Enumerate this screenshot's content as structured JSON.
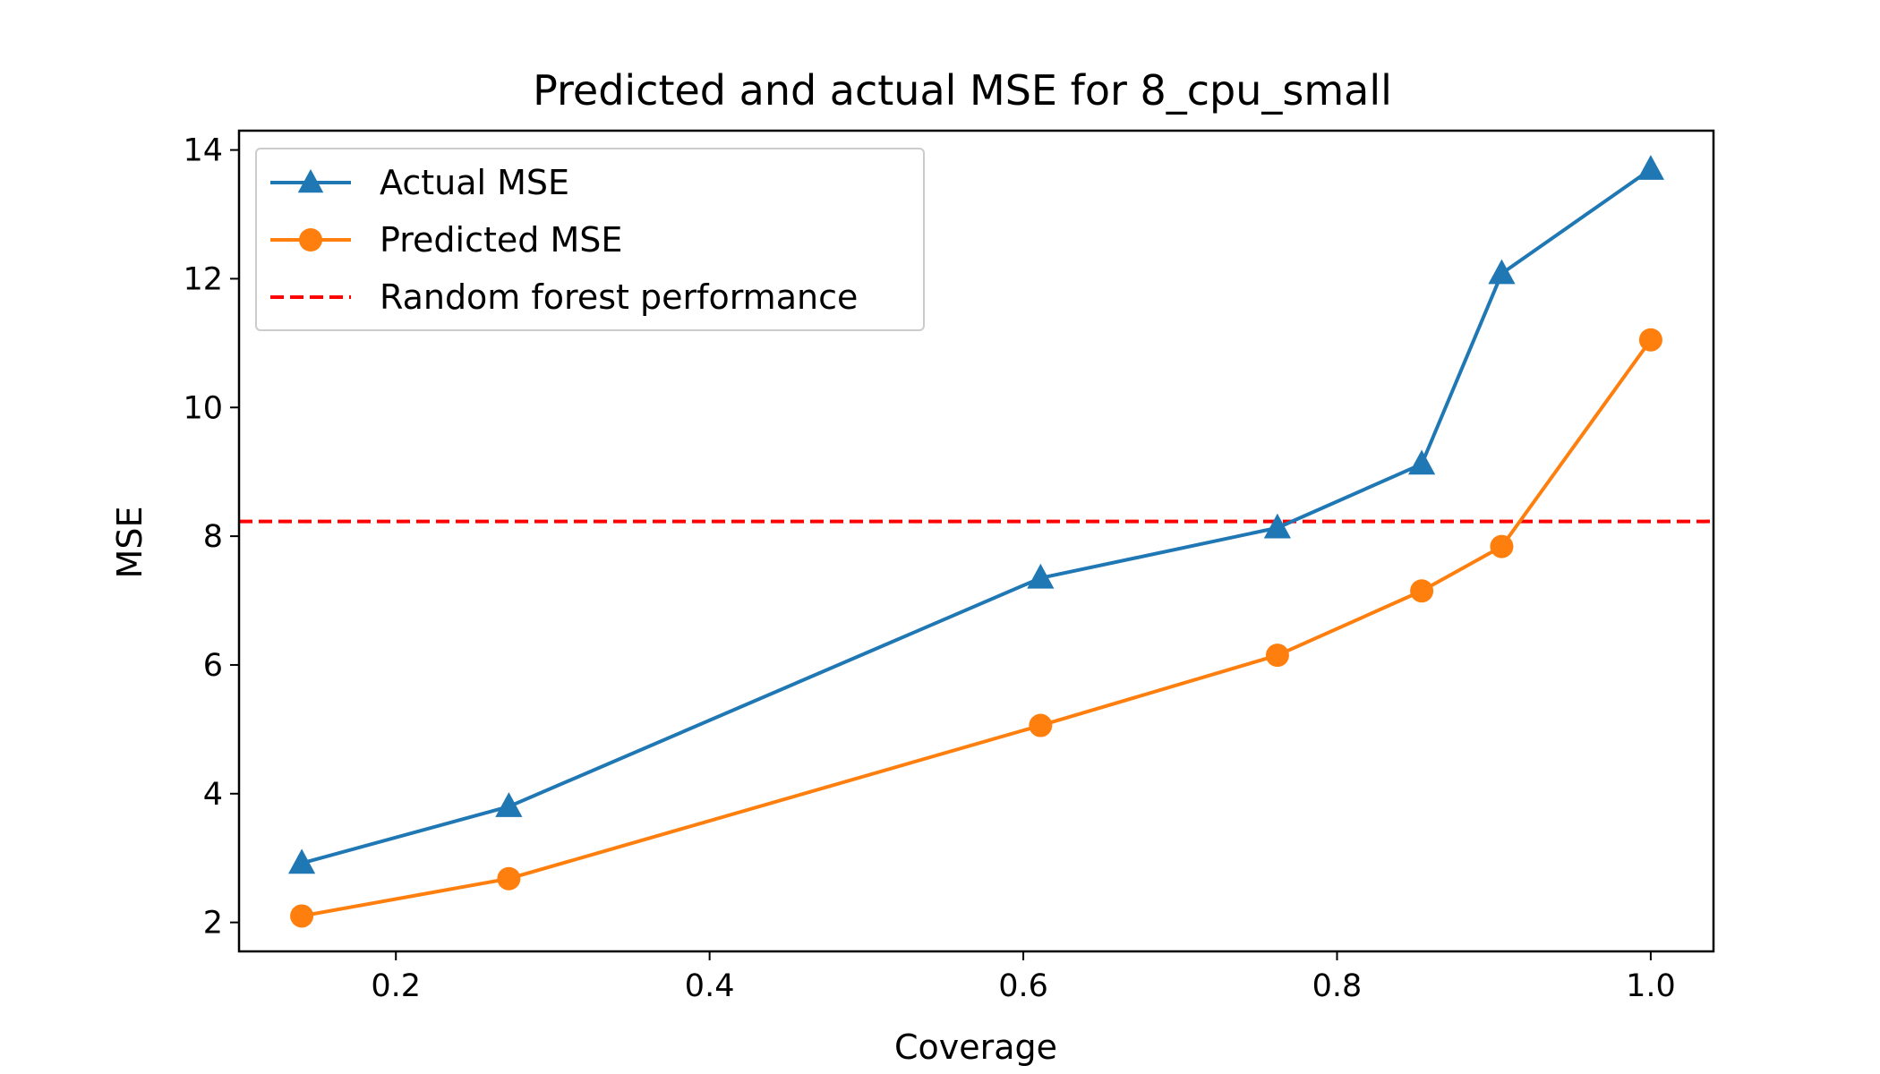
{
  "chart_data": {
    "type": "line",
    "title": "Predicted and actual MSE for 8_cpu_small",
    "xlabel": "Coverage",
    "ylabel": "MSE",
    "xlim": [
      0.1,
      1.04
    ],
    "ylim": [
      1.55,
      14.3
    ],
    "xticks": [
      0.2,
      0.4,
      0.6,
      0.8,
      1.0
    ],
    "xtick_labels": [
      "0.2",
      "0.4",
      "0.6",
      "0.8",
      "1.0"
    ],
    "yticks": [
      2,
      4,
      6,
      8,
      10,
      12,
      14
    ],
    "ytick_labels": [
      "2",
      "4",
      "6",
      "8",
      "10",
      "12",
      "14"
    ],
    "x": [
      0.14,
      0.272,
      0.611,
      0.762,
      0.854,
      0.905,
      1.0
    ],
    "series": [
      {
        "name": "Actual MSE",
        "values": [
          2.92,
          3.8,
          7.35,
          8.13,
          9.12,
          12.08,
          13.7
        ],
        "color": "#1f77b4",
        "marker": "triangle"
      },
      {
        "name": "Predicted MSE",
        "values": [
          2.1,
          2.68,
          5.06,
          6.15,
          7.15,
          7.84,
          11.05
        ],
        "color": "#ff7f0e",
        "marker": "circle"
      }
    ],
    "reference_line": {
      "name": "Random forest performance",
      "y": 8.23,
      "color": "#ff0000",
      "style": "dashed"
    },
    "grid": false,
    "legend_position": "upper left"
  }
}
